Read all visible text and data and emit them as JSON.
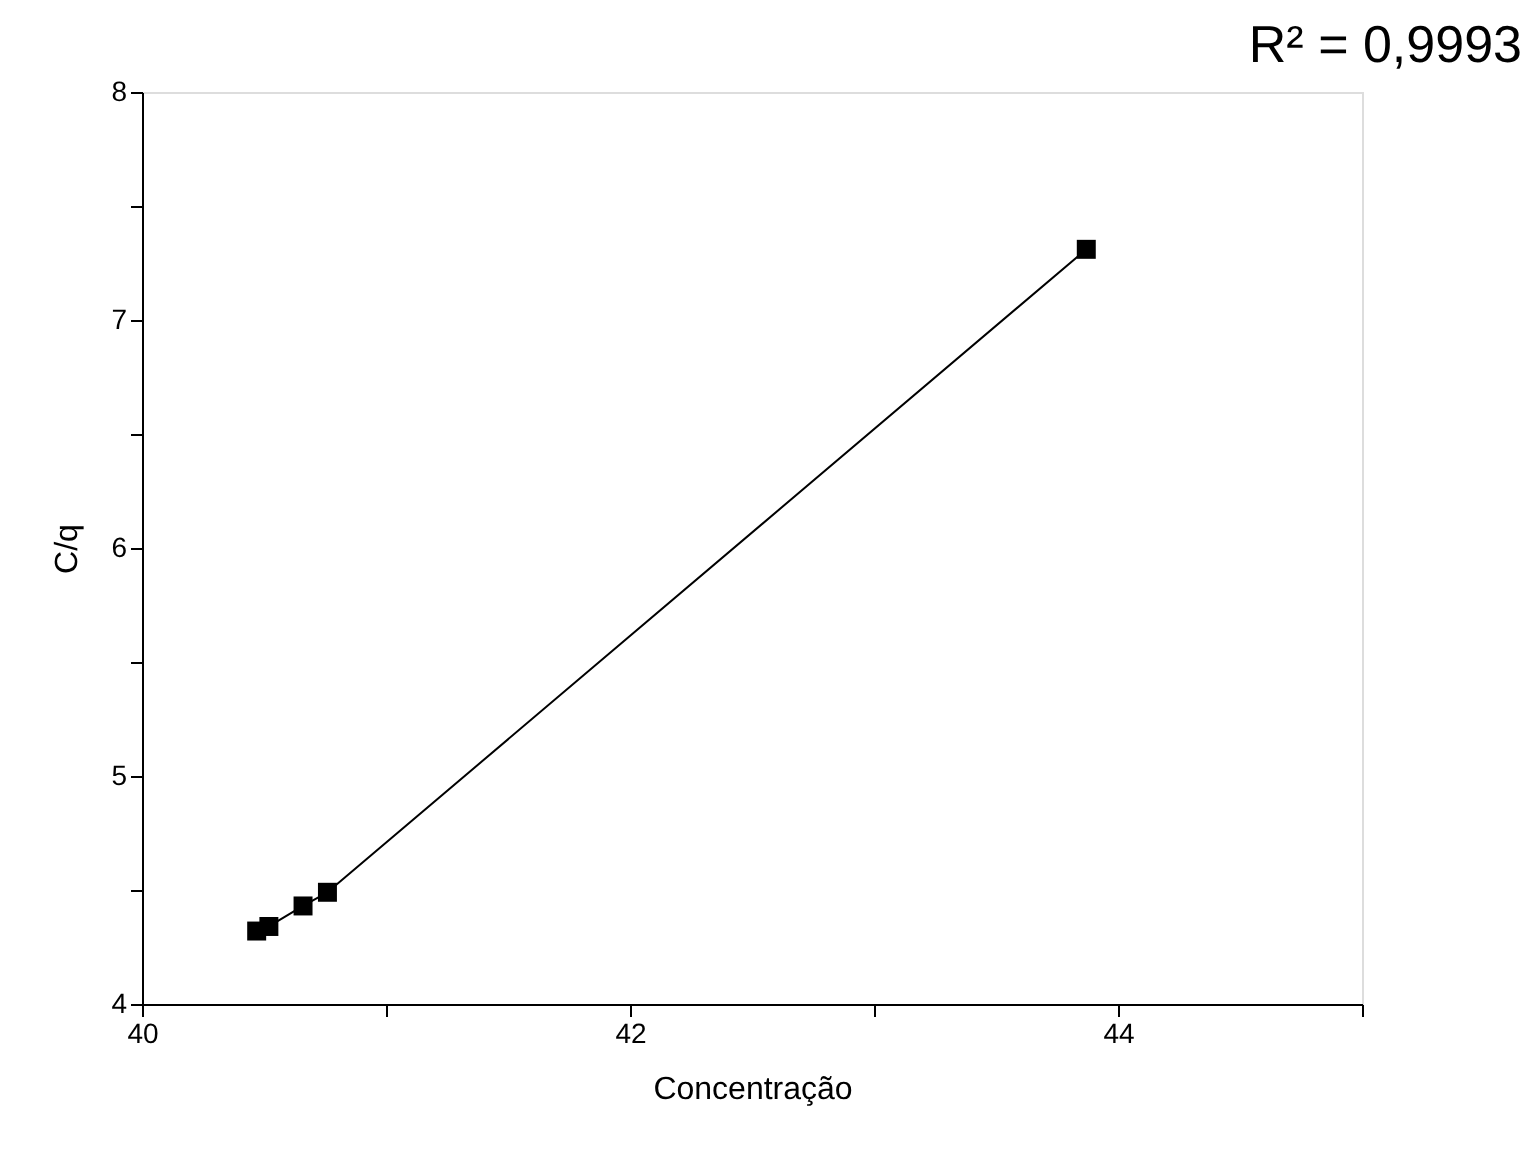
{
  "chart_data": {
    "type": "line",
    "xlabel": "Concentração",
    "ylabel": "C/q",
    "x": [
      40.47,
      40.52,
      40.66,
      40.76,
      43.87
    ],
    "series": [
      {
        "color": "#000000",
        "values": [
          4.32,
          4.34,
          4.43,
          4.49,
          7.31
        ]
      }
    ],
    "marker": "square",
    "line_style": "solid",
    "grid": false,
    "xlim": [
      40,
      45
    ],
    "xticks": [
      40,
      {
        "value": 41,
        "label": null
      },
      42,
      {
        "value": 43,
        "label": null
      },
      44,
      {
        "value": 45,
        "label": null
      }
    ],
    "ylim": [
      4,
      8
    ],
    "yticks": [
      4,
      {
        "value": 4.5,
        "label": null
      },
      5,
      {
        "value": 5.5,
        "label": null
      },
      6,
      {
        "value": 6.5,
        "label": null
      },
      7,
      {
        "value": 7.5,
        "label": null
      },
      8
    ],
    "annotations": [
      "R² = 0,9993"
    ]
  }
}
